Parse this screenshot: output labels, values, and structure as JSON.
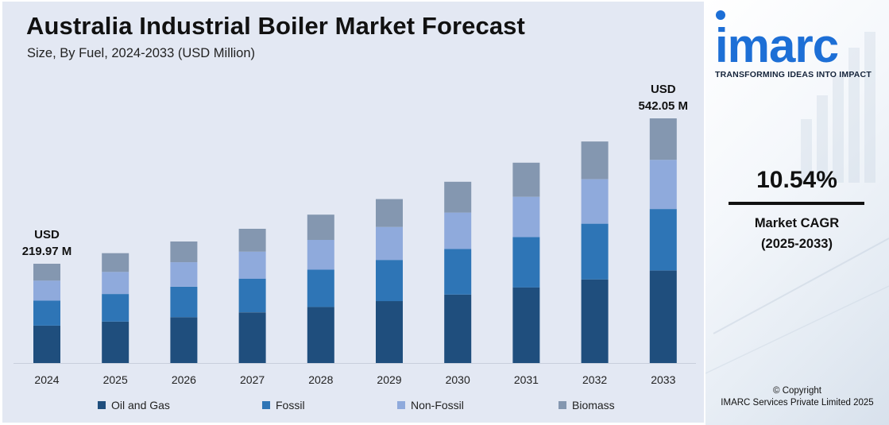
{
  "header": {
    "title": "Australia Industrial Boiler Market Forecast",
    "subtitle": "Size, By Fuel, 2024-2033 (USD Million)"
  },
  "chart_data": {
    "type": "bar",
    "stacked": true,
    "categories": [
      "2024",
      "2025",
      "2026",
      "2027",
      "2028",
      "2029",
      "2030",
      "2031",
      "2032",
      "2033"
    ],
    "series": [
      {
        "name": "Oil and Gas",
        "color": "#1f4e7d",
        "values": [
          82.9,
          91.9,
          101.6,
          112.3,
          124.2,
          137.2,
          151.7,
          167.7,
          185.4,
          204.9
        ]
      },
      {
        "name": "Fossil",
        "color": "#2e75b6",
        "values": [
          55.3,
          61.1,
          67.6,
          74.7,
          82.6,
          91.3,
          100.9,
          111.5,
          123.3,
          136.3
        ]
      },
      {
        "name": "Non-Fossil",
        "color": "#8faadc",
        "values": [
          44.3,
          48.9,
          54.1,
          59.8,
          66.1,
          73.0,
          80.7,
          89.2,
          98.6,
          109.0
        ]
      },
      {
        "name": "Biomass",
        "color": "#8497b0",
        "values": [
          37.47,
          41.5,
          45.9,
          50.6,
          55.9,
          61.8,
          68.3,
          75.5,
          83.5,
          91.85
        ]
      }
    ],
    "ylim": [
      0,
      560
    ],
    "annotations": [
      {
        "category": "2024",
        "line1": "USD",
        "line2": "219.97 M"
      },
      {
        "category": "2033",
        "line1": "USD",
        "line2": "542.05 M"
      }
    ],
    "legend_position": "bottom",
    "grid": false
  },
  "brand": {
    "logo_text": "imarc",
    "tagline": "TRANSFORMING IDEAS INTO IMPACT",
    "logo_color": "#1d6fd6"
  },
  "cagr": {
    "value": "10.54%",
    "label": "Market CAGR",
    "period": "(2025-2033)"
  },
  "footer": {
    "copyright_line1": "© Copyright",
    "copyright_line2": "IMARC Services Private Limited 2025"
  }
}
